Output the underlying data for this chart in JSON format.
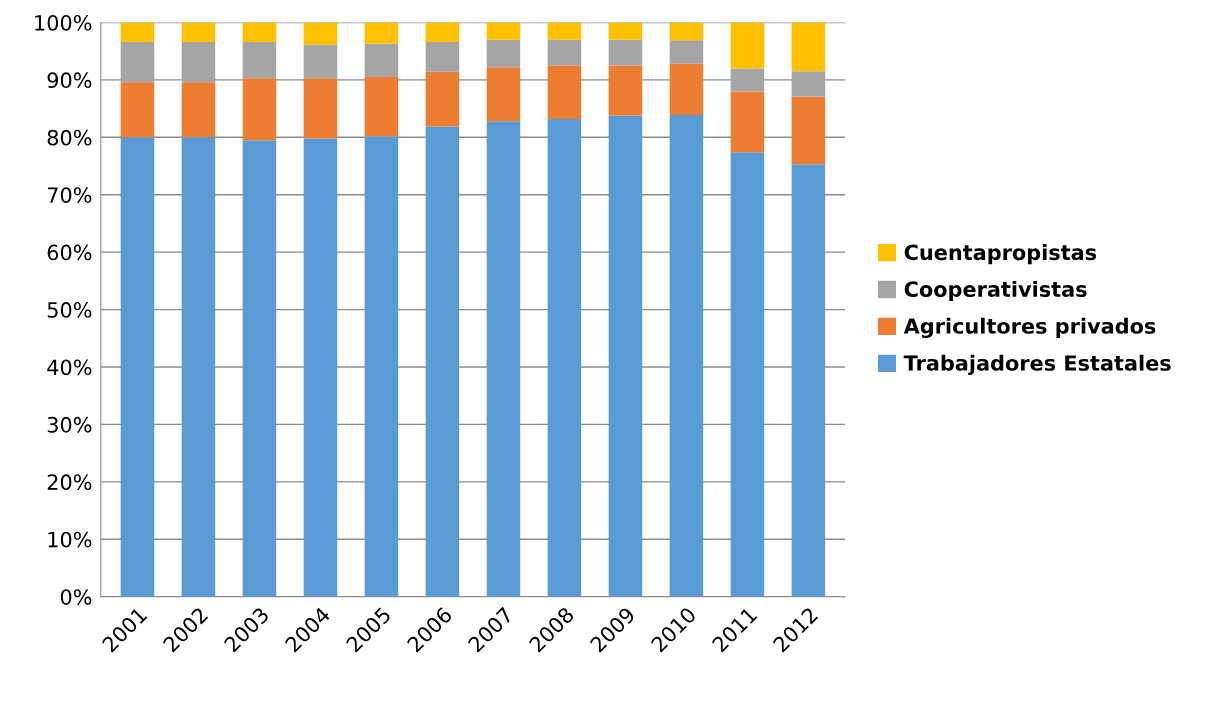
{
  "chart_data": {
    "type": "bar",
    "stacked": true,
    "categories": [
      "2001",
      "2002",
      "2003",
      "2004",
      "2005",
      "2006",
      "2007",
      "2008",
      "2009",
      "2010",
      "2011",
      "2012"
    ],
    "series": [
      {
        "name": "Trabajadores Estatales",
        "color": "#5b9bd5",
        "values": [
          80.0,
          80.0,
          79.5,
          79.8,
          80.2,
          81.9,
          82.8,
          83.2,
          83.8,
          83.9,
          77.4,
          75.3
        ]
      },
      {
        "name": "Agricultores privados",
        "color": "#ed7d31",
        "values": [
          9.6,
          9.6,
          10.8,
          10.5,
          10.3,
          9.5,
          9.4,
          9.3,
          8.7,
          8.9,
          10.6,
          11.8
        ]
      },
      {
        "name": "Cooperativistas",
        "color": "#a5a5a5",
        "values": [
          7.0,
          7.0,
          6.3,
          5.8,
          5.8,
          5.2,
          4.8,
          4.5,
          4.5,
          4.1,
          4.0,
          4.4
        ]
      },
      {
        "name": "Cuentapropistas",
        "color": "#ffc000",
        "values": [
          3.4,
          3.4,
          3.4,
          3.9,
          3.7,
          3.4,
          3.0,
          3.0,
          3.0,
          3.1,
          8.0,
          8.5
        ]
      }
    ],
    "ylim": [
      0,
      100
    ],
    "yticks": [
      {
        "value": 0,
        "label": "0%"
      },
      {
        "value": 10,
        "label": "10%"
      },
      {
        "value": 20,
        "label": "20%"
      },
      {
        "value": 30,
        "label": "30%"
      },
      {
        "value": 40,
        "label": "40%"
      },
      {
        "value": 50,
        "label": "50%"
      },
      {
        "value": 60,
        "label": "60%"
      },
      {
        "value": 70,
        "label": "70%"
      },
      {
        "value": 80,
        "label": "80%"
      },
      {
        "value": 90,
        "label": "90%"
      },
      {
        "value": 100,
        "label": "100%"
      }
    ],
    "grid": "y",
    "legend": "right"
  }
}
